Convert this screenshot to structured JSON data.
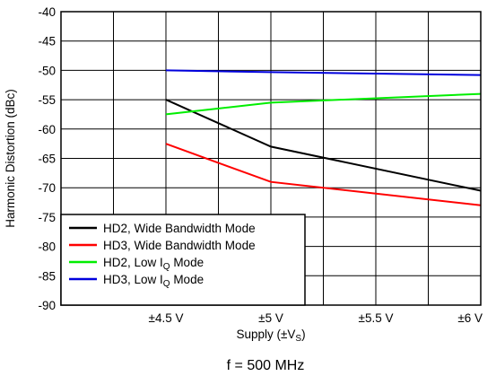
{
  "chart_data": {
    "type": "line",
    "title": "",
    "xlabel": "Supply (±V",
    "xlabel_sub": "S",
    "xlabel_end": ")",
    "ylabel": "Harmonic Distortion (dBc)",
    "caption": "f = 500 MHz",
    "xlim": [
      4,
      6
    ],
    "ylim": [
      -90,
      -40
    ],
    "x_ticks": [
      {
        "value": 4.5,
        "label": "±4.5 V"
      },
      {
        "value": 5,
        "label": "±5 V"
      },
      {
        "value": 5.5,
        "label": "±5.5 V"
      },
      {
        "value": 6,
        "label": "±6 V"
      }
    ],
    "y_ticks": [
      {
        "value": -40,
        "label": "-40"
      },
      {
        "value": -45,
        "label": "-45"
      },
      {
        "value": -50,
        "label": "-50"
      },
      {
        "value": -55,
        "label": "-55"
      },
      {
        "value": -60,
        "label": "-60"
      },
      {
        "value": -65,
        "label": "-65"
      },
      {
        "value": -70,
        "label": "-70"
      },
      {
        "value": -75,
        "label": "-75"
      },
      {
        "value": -80,
        "label": "-80"
      },
      {
        "value": -85,
        "label": "-85"
      },
      {
        "value": -90,
        "label": "-90"
      }
    ],
    "x_minor_step": 0.25,
    "grid": true,
    "legend_position": "bottom-left",
    "series": [
      {
        "name": "HD2, Wide Bandwidth Mode",
        "legend_text": "HD2, Wide Bandwidth Mode",
        "legend_sub": "",
        "legend_tail": "",
        "color": "#000000",
        "x": [
          4.5,
          5,
          6
        ],
        "y": [
          -55,
          -63,
          -70.5
        ]
      },
      {
        "name": "HD3, Wide Bandwidth Mode",
        "legend_text": "HD3, Wide Bandwidth Mode",
        "legend_sub": "",
        "legend_tail": "",
        "color": "#ff0000",
        "x": [
          4.5,
          5,
          6
        ],
        "y": [
          -62.5,
          -69,
          -73
        ]
      },
      {
        "name": "HD2, Low IQ Mode",
        "legend_text": "HD2, Low I",
        "legend_sub": "Q",
        "legend_tail": " Mode",
        "color": "#00ee00",
        "x": [
          4.5,
          5,
          6
        ],
        "y": [
          -57.5,
          -55.5,
          -54
        ]
      },
      {
        "name": "HD3, Low IQ Mode",
        "legend_text": "HD3, Low I",
        "legend_sub": "Q",
        "legend_tail": " Mode",
        "color": "#0000dd",
        "x": [
          4.5,
          5,
          6
        ],
        "y": [
          -50,
          -50.3,
          -50.8
        ]
      }
    ]
  }
}
